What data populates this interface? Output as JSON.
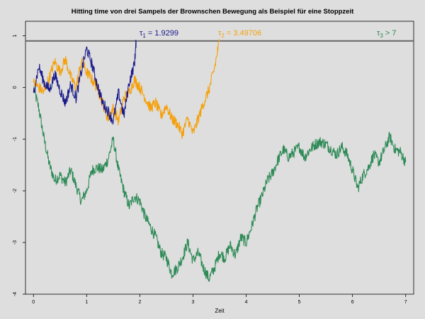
{
  "chart_data": {
    "type": "line",
    "title": "Hitting time von drei Sampels der Brownschen Bewegung als Beispiel für eine Stoppzeit",
    "xlabel": "Zeit",
    "ylabel": "",
    "xlim": [
      -0.15,
      7.15
    ],
    "ylim": [
      -4.0,
      1.28
    ],
    "x_ticks": [
      "0",
      "1",
      "2",
      "3",
      "4",
      "5",
      "6",
      "7"
    ],
    "y_ticks": [
      "-4",
      "-3",
      "-2",
      "-1",
      "0",
      "1"
    ],
    "threshold": 0.9,
    "threshold_label": "1",
    "series": [
      {
        "color": "#1a1a8a",
        "x": [
          0,
          0.1,
          0.2,
          0.3,
          0.4,
          0.5,
          0.6,
          0.7,
          0.8,
          0.9,
          1.0,
          1.1,
          1.2,
          1.3,
          1.4,
          1.5,
          1.6,
          1.7,
          1.8,
          1.9,
          1.93
        ],
        "y": [
          -0.1,
          0.4,
          0.1,
          -0.05,
          0.25,
          -0.05,
          -0.3,
          0.05,
          -0.2,
          0.3,
          0.75,
          0.45,
          0.05,
          -0.3,
          -0.45,
          -0.65,
          -0.1,
          -0.55,
          0.1,
          0.45,
          0.9
        ]
      },
      {
        "color": "#f5a00a",
        "x": [
          0,
          0.1,
          0.2,
          0.3,
          0.4,
          0.5,
          0.6,
          0.7,
          0.8,
          0.9,
          1.0,
          1.1,
          1.2,
          1.3,
          1.4,
          1.5,
          1.6,
          1.7,
          1.8,
          1.9,
          2.0,
          2.1,
          2.2,
          2.3,
          2.4,
          2.5,
          2.6,
          2.7,
          2.8,
          2.9,
          3.0,
          3.1,
          3.2,
          3.3,
          3.4,
          3.497
        ],
        "y": [
          0.1,
          0.0,
          -0.1,
          0.2,
          0.5,
          0.3,
          0.55,
          0.2,
          0.0,
          0.5,
          0.3,
          0.15,
          0.0,
          -0.3,
          -0.6,
          -0.4,
          -0.65,
          -0.2,
          -0.1,
          0.15,
          0.0,
          -0.2,
          -0.4,
          -0.3,
          -0.55,
          -0.35,
          -0.6,
          -0.7,
          -0.9,
          -0.6,
          -0.9,
          -0.6,
          -0.3,
          -0.05,
          0.35,
          0.9
        ]
      },
      {
        "color": "#2e8b57",
        "x": [
          0,
          0.1,
          0.2,
          0.3,
          0.4,
          0.5,
          0.6,
          0.7,
          0.8,
          0.9,
          1.0,
          1.1,
          1.2,
          1.3,
          1.4,
          1.5,
          1.6,
          1.7,
          1.8,
          1.9,
          2.0,
          2.1,
          2.2,
          2.3,
          2.4,
          2.5,
          2.6,
          2.7,
          2.8,
          2.9,
          3.0,
          3.1,
          3.2,
          3.3,
          3.4,
          3.5,
          3.6,
          3.7,
          3.8,
          3.9,
          4.0,
          4.1,
          4.2,
          4.3,
          4.4,
          4.5,
          4.6,
          4.7,
          4.8,
          4.9,
          5.0,
          5.1,
          5.2,
          5.3,
          5.4,
          5.5,
          5.6,
          5.7,
          5.8,
          5.9,
          6.0,
          6.1,
          6.2,
          6.3,
          6.4,
          6.5,
          6.6,
          6.7,
          6.8,
          6.9,
          7.0
        ],
        "y": [
          0.0,
          -0.4,
          -1.0,
          -1.5,
          -1.8,
          -1.7,
          -1.85,
          -1.6,
          -1.9,
          -2.2,
          -2.0,
          -1.6,
          -1.55,
          -1.6,
          -1.4,
          -1.0,
          -1.6,
          -2.0,
          -2.3,
          -2.1,
          -2.2,
          -2.5,
          -2.7,
          -2.9,
          -3.2,
          -3.3,
          -3.6,
          -3.5,
          -3.3,
          -3.0,
          -3.35,
          -3.2,
          -3.5,
          -3.7,
          -3.5,
          -3.2,
          -3.3,
          -3.05,
          -3.25,
          -2.9,
          -3.0,
          -2.7,
          -2.35,
          -2.1,
          -1.8,
          -1.65,
          -1.4,
          -1.2,
          -1.35,
          -1.25,
          -1.15,
          -1.35,
          -1.2,
          -1.1,
          -1.05,
          -1.1,
          -1.2,
          -1.3,
          -1.15,
          -1.3,
          -1.6,
          -1.95,
          -1.7,
          -1.55,
          -1.3,
          -1.45,
          -1.2,
          -0.95,
          -1.2,
          -1.25,
          -1.45
        ]
      }
    ],
    "annotations": [
      {
        "symbol": "τ",
        "sub": "1",
        "rest": " = 1.9299",
        "color": "#1a1a8a"
      },
      {
        "symbol": "τ",
        "sub": "2",
        "rest": " = 3.49706",
        "color": "#f5a00a"
      },
      {
        "symbol": "τ",
        "sub": "3",
        "rest": " > 7",
        "color": "#2e8b57"
      }
    ],
    "grid": false
  }
}
